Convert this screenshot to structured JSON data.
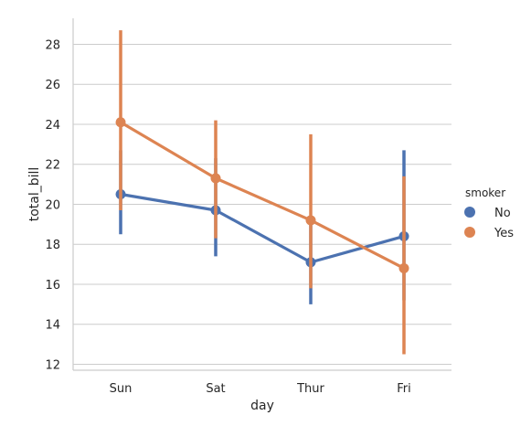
{
  "chart_data": {
    "type": "line",
    "xlabel": "day",
    "ylabel": "total_bill",
    "categories": [
      "Sun",
      "Sat",
      "Thur",
      "Fri"
    ],
    "ylim": [
      11.7,
      29.3
    ],
    "yticks": [
      12,
      14,
      16,
      18,
      20,
      22,
      24,
      26,
      28
    ],
    "grid": "horizontal",
    "legend": {
      "title": "smoker",
      "placement": "right"
    },
    "series": [
      {
        "name": "No",
        "color": "#4c72b0",
        "values": [
          20.5,
          19.7,
          17.1,
          18.4
        ],
        "ci_low": [
          18.5,
          17.4,
          15.0,
          15.2
        ],
        "ci_high": [
          22.7,
          22.3,
          19.2,
          22.7
        ]
      },
      {
        "name": "Yes",
        "color": "#dd8452",
        "values": [
          24.1,
          21.3,
          19.2,
          16.8
        ],
        "ci_low": [
          19.7,
          18.3,
          15.8,
          12.5
        ],
        "ci_high": [
          28.7,
          24.2,
          23.5,
          21.4
        ]
      }
    ]
  }
}
